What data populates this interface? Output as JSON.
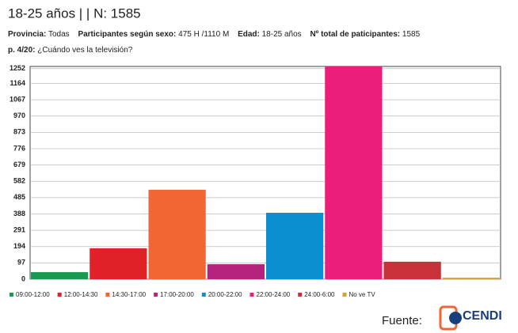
{
  "header": {
    "title": "18-25 años | | N: 1585",
    "info": [
      {
        "label": "Provincia:",
        "value": "Todas"
      },
      {
        "label": "Participantes según sexo:",
        "value": "475 H /1110 M"
      },
      {
        "label": "Edad:",
        "value": "18-25 años"
      },
      {
        "label": "Nº total de paticipantes:",
        "value": "1585"
      }
    ],
    "question": {
      "label": "p. 4/20:",
      "text": "¿Cuándo ves la televisión?"
    }
  },
  "chart_data": {
    "type": "bar",
    "categories": [
      "09:00-12:00",
      "12:00-14:30",
      "14:30-17:00",
      "17:00-20:00",
      "20:00-22:00",
      "22:00-24:00",
      "24:00-6:00",
      "No ve TV"
    ],
    "values": [
      42,
      184,
      532,
      89,
      395,
      1265,
      104,
      9
    ],
    "colors": [
      "#1a9a50",
      "#e02127",
      "#f26634",
      "#b5237e",
      "#0a8fd0",
      "#eb1e7b",
      "#c8313a",
      "#d6a03a"
    ],
    "ylim": [
      0,
      1265
    ],
    "yticks": [
      0,
      97,
      194,
      291,
      388,
      485,
      582,
      679,
      776,
      873,
      970,
      1067,
      1164,
      1252
    ],
    "grid": true,
    "legend": "bottom"
  },
  "footer": {
    "source": "Fuente:",
    "logo": "CENDI"
  }
}
